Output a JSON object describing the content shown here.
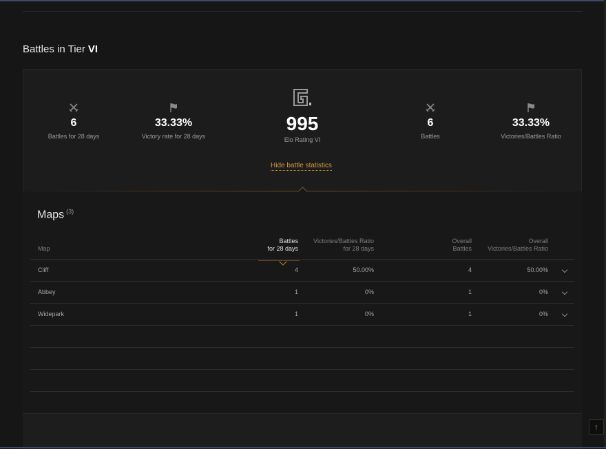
{
  "page_title": "Battles in Tier",
  "tier": "VI",
  "stats": {
    "battles_28": {
      "value": "6",
      "label": "Battles for 28 days",
      "icon": "crossed-swords-icon"
    },
    "victory_28": {
      "value": "33.33%",
      "label": "Victory rate for 28 days",
      "icon": "flag-icon"
    },
    "elo": {
      "value": "995",
      "label": "Elo Rating VI",
      "icon": "elo-logo-icon"
    },
    "battles": {
      "value": "6",
      "label": "Battles",
      "icon": "crossed-swords-icon"
    },
    "ratio": {
      "value": "33.33%",
      "label": "Victories/Battles Ratio",
      "icon": "flag-icon"
    }
  },
  "hide_link": "Hide battle statistics",
  "maps": {
    "title": "Maps",
    "count": "(3)",
    "headers": {
      "map": "Map",
      "battles_28_l1": "Battles",
      "battles_28_l2": "for 28 days",
      "ratio_28_l1": "Victories/Battles Ratio",
      "ratio_28_l2": "for 28 days",
      "overall_battles_l1": "Overall",
      "overall_battles_l2": "Battles",
      "overall_ratio_l1": "Overall",
      "overall_ratio_l2": "Victories/Battles Ratio"
    },
    "rows": [
      {
        "map": "Cliff",
        "battles_28": "4",
        "ratio_28": "50.00%",
        "overall_battles": "4",
        "overall_ratio": "50.00%"
      },
      {
        "map": "Abbey",
        "battles_28": "1",
        "ratio_28": "0%",
        "overall_battles": "1",
        "overall_ratio": "0%"
      },
      {
        "map": "Widepark",
        "battles_28": "1",
        "ratio_28": "0%",
        "overall_battles": "1",
        "overall_ratio": "0%"
      }
    ]
  },
  "colors": {
    "accent": "#d29a3c",
    "background": "#161616",
    "text": "#b9b9b9"
  }
}
